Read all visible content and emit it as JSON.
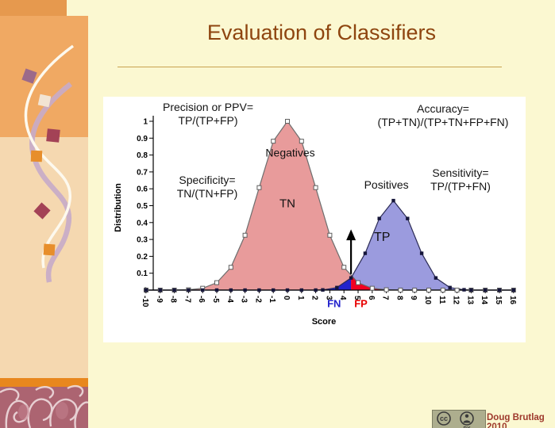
{
  "slide": {
    "title": "Evaluation of Classifiers",
    "footer_credit": "Doug Brutlag 2010",
    "cc_badge": {
      "cc_label": "cc",
      "by_label": "BY"
    }
  },
  "formulas": {
    "precision": {
      "line1": "Precision or PPV=",
      "line2": "TP/(TP+FP)"
    },
    "accuracy": {
      "line1": "Accuracy=",
      "line2": "(TP+TN)/(TP+TN+FP+FN)"
    },
    "specificity": {
      "line1": "Specificity=",
      "line2": "TN/(TN+FP)"
    },
    "sensitivity": {
      "line1": "Sensitivity=",
      "line2": "TP/(TP+FN)"
    }
  },
  "chart_data": {
    "type": "area",
    "title": "",
    "xlabel": "Score",
    "ylabel": "Distribution",
    "xlim": [
      -10,
      16
    ],
    "ylim": [
      0,
      1
    ],
    "grid": false,
    "legend": "none",
    "x_ticks": [
      -10,
      -9,
      -8,
      -7,
      -6,
      -5,
      -4,
      -3,
      -2,
      -1,
      0,
      1,
      2,
      3,
      4,
      5,
      6,
      7,
      8,
      9,
      10,
      11,
      12,
      13,
      14,
      15,
      16
    ],
    "y_tick_labels": [
      "0",
      "0.1",
      "0.2",
      "0.3",
      "0.4",
      "0.5",
      "0.6",
      "0.7",
      "0.8",
      "0.9",
      "1"
    ],
    "series": [
      {
        "name": "Negatives",
        "region_label": "TN",
        "fill": "#E89B9B",
        "line_color": "#6E6E6E",
        "marker": "open-square",
        "points": [
          [
            -10,
            0
          ],
          [
            -9,
            0
          ],
          [
            -8,
            0
          ],
          [
            -7,
            0.002
          ],
          [
            -6,
            0.011
          ],
          [
            -5,
            0.044
          ],
          [
            -4,
            0.135
          ],
          [
            -3,
            0.325
          ],
          [
            -2,
            0.607
          ],
          [
            -1,
            0.882
          ],
          [
            0,
            1
          ],
          [
            1,
            0.882
          ],
          [
            2,
            0.607
          ],
          [
            3,
            0.325
          ],
          [
            4,
            0.135
          ],
          [
            5,
            0.044
          ],
          [
            6,
            0.011
          ],
          [
            7,
            0.002
          ],
          [
            8,
            0
          ],
          [
            9,
            0
          ],
          [
            10,
            0
          ],
          [
            11,
            0
          ],
          [
            12,
            0
          ],
          [
            13,
            0
          ],
          [
            14,
            0
          ],
          [
            15,
            0
          ],
          [
            16,
            0
          ]
        ]
      },
      {
        "name": "Positives",
        "region_label": "TP",
        "fill": "#9B9BDE",
        "line_color": "#2B2B55",
        "marker": "filled-square",
        "points": [
          [
            -10,
            0
          ],
          [
            -9,
            0
          ],
          [
            -8,
            0
          ],
          [
            -7,
            0
          ],
          [
            -6,
            0
          ],
          [
            -5,
            0
          ],
          [
            -4,
            0
          ],
          [
            -3,
            0
          ],
          [
            -2,
            0
          ],
          [
            -1,
            0
          ],
          [
            0,
            0
          ],
          [
            1,
            0
          ],
          [
            2,
            0
          ],
          [
            2.5,
            0.001
          ],
          [
            3.5,
            0.015
          ],
          [
            4.5,
            0.072
          ],
          [
            5.5,
            0.218
          ],
          [
            6.5,
            0.424
          ],
          [
            7.5,
            0.53
          ],
          [
            8.5,
            0.424
          ],
          [
            9.5,
            0.218
          ],
          [
            10.5,
            0.072
          ],
          [
            11.5,
            0.015
          ],
          [
            12.5,
            0.002
          ],
          [
            13,
            0
          ],
          [
            14,
            0
          ],
          [
            15,
            0
          ],
          [
            16,
            0
          ]
        ]
      }
    ],
    "threshold": {
      "x": 4.5,
      "arrow_color": "#000000"
    },
    "error_regions": [
      {
        "label": "FN",
        "series": "Positives",
        "from_x": 1,
        "to_x": 4.5,
        "fill": "#2222CC",
        "label_color": "#2222CC",
        "label_x": 3.3,
        "label_y": -0.1
      },
      {
        "label": "FP",
        "series": "Negatives",
        "from_x": 4.5,
        "to_x": 8,
        "fill": "#F30021",
        "label_color": "#E80000",
        "label_x": 5.2,
        "label_y": -0.1
      }
    ],
    "curve_labels": [
      {
        "text": "Negatives",
        "x": 0.2,
        "y": 0.79,
        "size": 14
      },
      {
        "text": "TN",
        "x": 0,
        "y": 0.49,
        "size": 15
      },
      {
        "text": "Positives",
        "x": 7,
        "y": 0.6,
        "size": 14
      },
      {
        "text": "TP",
        "x": 6.7,
        "y": 0.29,
        "size": 16
      }
    ]
  }
}
